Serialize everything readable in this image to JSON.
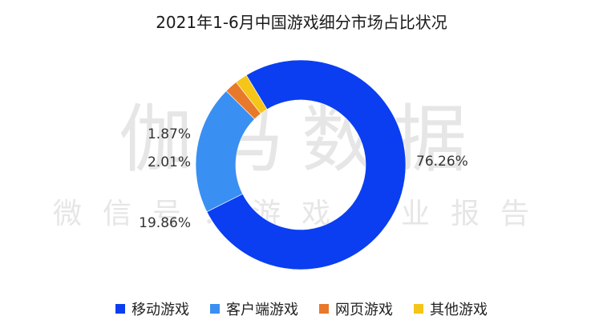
{
  "watermark": {
    "main": "伽马数据",
    "sub": "微信号：游戏产业报告"
  },
  "chart_data": {
    "type": "pie",
    "variant": "donut",
    "title": "2021年1-6月中国游戏细分市场占比状况",
    "legend_position": "bottom",
    "slices": [
      {
        "name": "移动游戏",
        "value": 76.26,
        "label": "76.26%",
        "color": "#0a3ef0"
      },
      {
        "name": "客户端游戏",
        "value": 19.86,
        "label": "19.86%",
        "color": "#3a8ff2"
      },
      {
        "name": "网页游戏",
        "value": 2.01,
        "label": "2.01%",
        "color": "#e8782a"
      },
      {
        "name": "其他游戏",
        "value": 1.87,
        "label": "1.87%",
        "color": "#f5c518"
      }
    ]
  }
}
